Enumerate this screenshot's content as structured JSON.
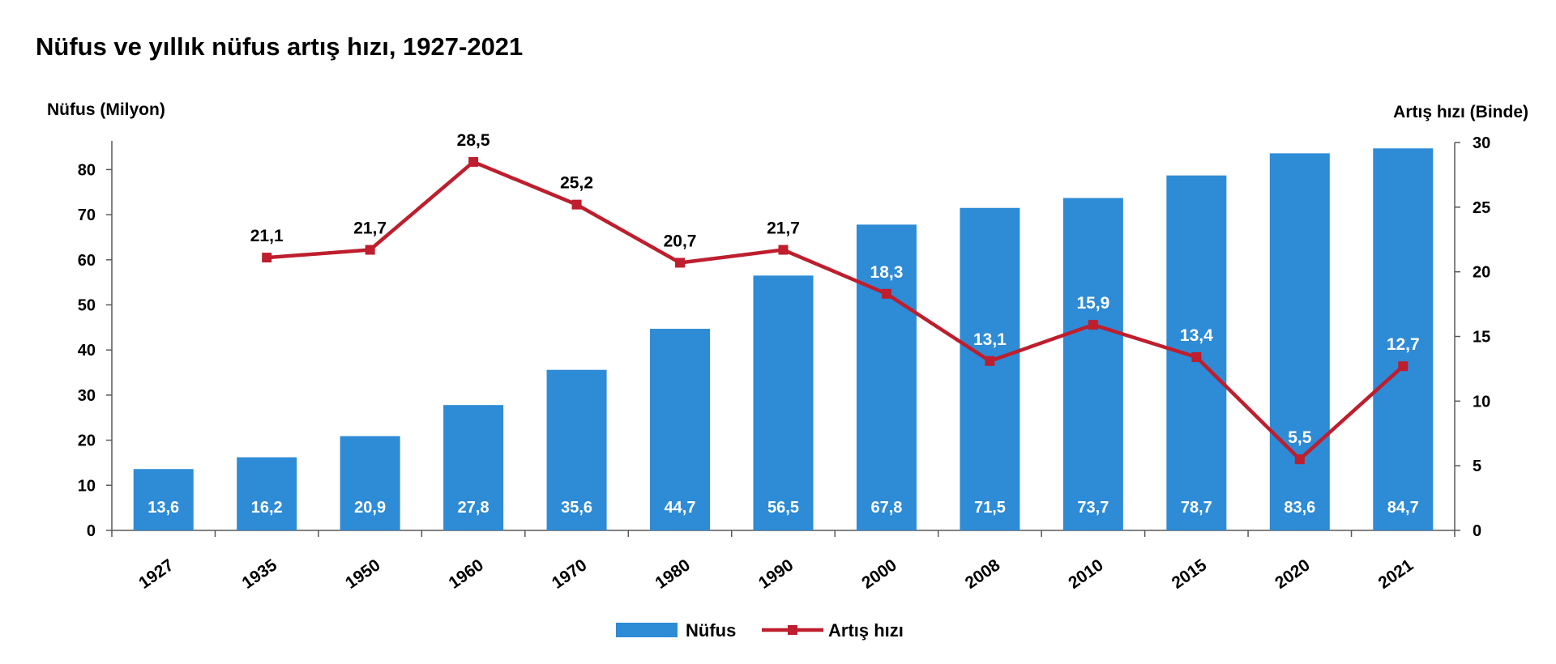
{
  "chart_data": {
    "type": "bar",
    "title": "Nüfus ve yıllık nüfus artış hızı, 1927-2021",
    "categories": [
      "1927",
      "1935",
      "1950",
      "1960",
      "1970",
      "1980",
      "1990",
      "2000",
      "2008",
      "2010",
      "2015",
      "2020",
      "2021"
    ],
    "y_left": {
      "label": "Nüfus (Milyon)",
      "range": [
        0,
        86
      ],
      "ticks": [
        0,
        10,
        20,
        30,
        40,
        50,
        60,
        70,
        80
      ]
    },
    "y_right": {
      "label": "Artış hızı (Binde)",
      "range": [
        0,
        30
      ],
      "ticks": [
        0,
        5,
        10,
        15,
        20,
        25,
        30
      ]
    },
    "series": [
      {
        "name": "Nüfus",
        "type": "bar",
        "axis": "left",
        "color": "#2e8bd6",
        "values": [
          13.6,
          16.2,
          20.9,
          27.8,
          35.6,
          44.7,
          56.5,
          67.8,
          71.5,
          73.7,
          78.7,
          83.6,
          84.7
        ],
        "labels": [
          "13,6",
          "16,2",
          "20,9",
          "27,8",
          "35,6",
          "44,7",
          "56,5",
          "67,8",
          "71,5",
          "73,7",
          "78,7",
          "83,6",
          "84,7"
        ]
      },
      {
        "name": "Artış hızı",
        "type": "line",
        "axis": "right",
        "color": "#be1e2d",
        "values": [
          null,
          21.1,
          21.7,
          28.5,
          25.2,
          20.7,
          21.7,
          18.3,
          13.1,
          15.9,
          13.4,
          5.5,
          12.7
        ],
        "labels": [
          null,
          "21,1",
          "21,7",
          "28,5",
          "25,2",
          "20,7",
          "21,7",
          "18,3",
          "13,1",
          "15,9",
          "13,4",
          "5,5",
          "12,7"
        ]
      }
    ],
    "grid": false,
    "legend_position": "bottom"
  }
}
